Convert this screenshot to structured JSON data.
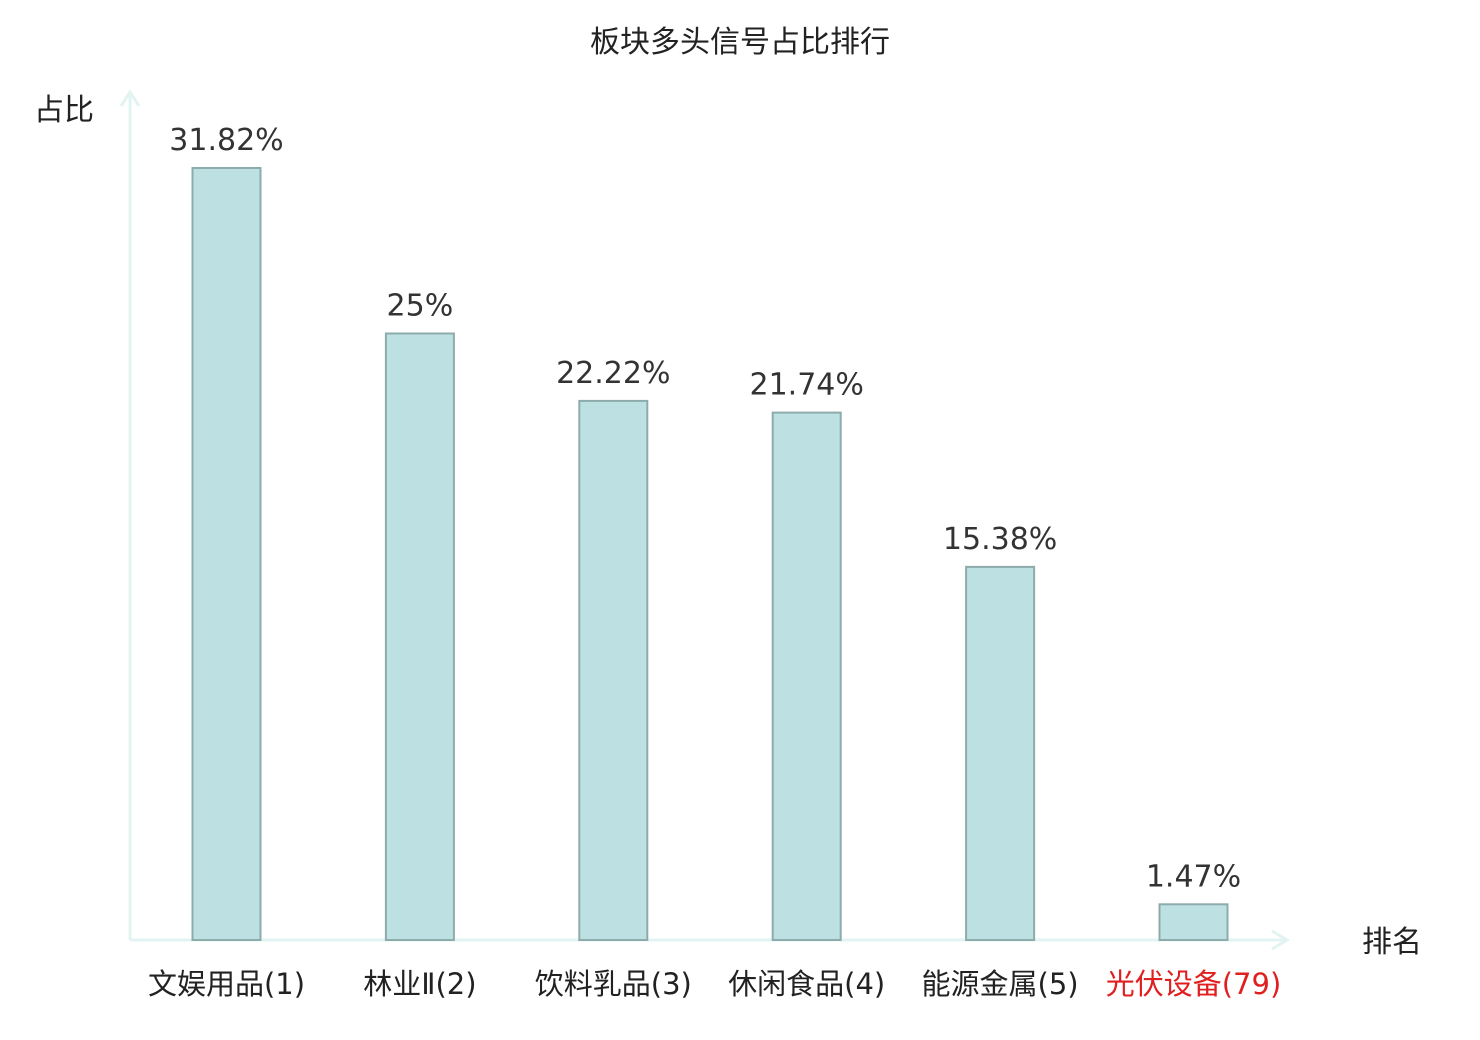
{
  "chart_data": {
    "type": "bar",
    "title": "板块多头信号占比排行",
    "ylabel": "占比",
    "xlabel": "排名",
    "categories": [
      {
        "name": "文娱用品",
        "rank": "(1)",
        "highlight": false
      },
      {
        "name": "林业Ⅱ",
        "rank": "(2)",
        "highlight": false
      },
      {
        "name": "饮料乳品",
        "rank": "(3)",
        "highlight": false
      },
      {
        "name": "休闲食品",
        "rank": "(4)",
        "highlight": false
      },
      {
        "name": "能源金属",
        "rank": "(5)",
        "highlight": false
      },
      {
        "name": "光伏设备",
        "rank": "(79)",
        "highlight": true
      }
    ],
    "values": [
      31.82,
      25,
      22.22,
      21.74,
      15.38,
      1.47
    ],
    "value_labels": [
      "31.82%",
      "25%",
      "22.22%",
      "21.74%",
      "15.38%",
      "1.47%"
    ],
    "ylim": [
      0,
      31.82
    ],
    "grid": false,
    "colors": {
      "bar_fill": "#bde1e3",
      "bar_stroke": "#8eabab",
      "axis": "#e2f4f1",
      "text": "#222222",
      "value_text": "#333333",
      "highlight": "#e02020"
    }
  }
}
